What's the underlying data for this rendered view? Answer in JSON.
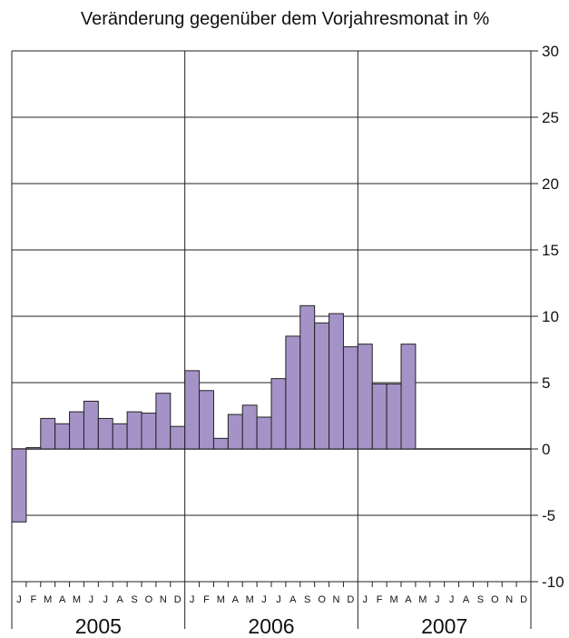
{
  "chart_data": {
    "type": "bar",
    "title": "Veränderung gegenüber dem Vorjahresmonat in %",
    "xlabel": "",
    "ylabel": "",
    "ylim": [
      -10,
      30
    ],
    "yticks": [
      30,
      25,
      20,
      15,
      10,
      5,
      0,
      -5,
      -10
    ],
    "y_axis_side": "right",
    "grid": true,
    "years": [
      "2005",
      "2006",
      "2007"
    ],
    "month_labels": [
      "J",
      "F",
      "M",
      "A",
      "M",
      "J",
      "J",
      "A",
      "S",
      "O",
      "N",
      "D"
    ],
    "series": [
      {
        "values": [
          -5.5,
          0.1,
          2.3,
          1.9,
          2.8,
          3.6,
          2.3,
          1.9,
          2.8,
          2.7,
          4.2,
          1.7,
          5.9,
          4.4,
          0.8,
          2.6,
          3.3,
          2.4,
          5.3,
          8.5,
          10.8,
          9.5,
          10.2,
          7.7,
          7.9,
          4.9,
          4.9,
          7.9,
          null,
          null,
          null,
          null,
          null,
          null,
          null,
          null
        ]
      }
    ]
  }
}
